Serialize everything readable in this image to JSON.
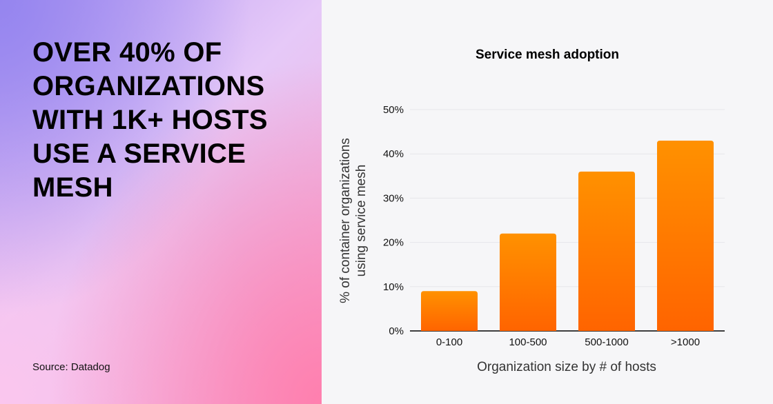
{
  "headline": "OVER 40% OF ORGANIZATIONS WITH 1K+ HOSTS USE A SERVICE MESH",
  "source": "Source: Datadog",
  "chart_data": {
    "type": "bar",
    "title": "Service mesh adoption",
    "categories": [
      "0-100",
      "100-500",
      "500-1000",
      ">1000"
    ],
    "values": [
      9,
      22,
      36,
      43
    ],
    "xlabel": "Organization size by # of hosts",
    "ylabel": [
      "% of container organizations",
      "using service mesh"
    ],
    "ylim": [
      0,
      50
    ],
    "yticks": [
      "0%",
      "10%",
      "20%",
      "30%",
      "40%",
      "50%"
    ],
    "grid": true,
    "colors": {
      "bar_top": "#ff9100",
      "bar_bottom": "#ff6400"
    }
  }
}
